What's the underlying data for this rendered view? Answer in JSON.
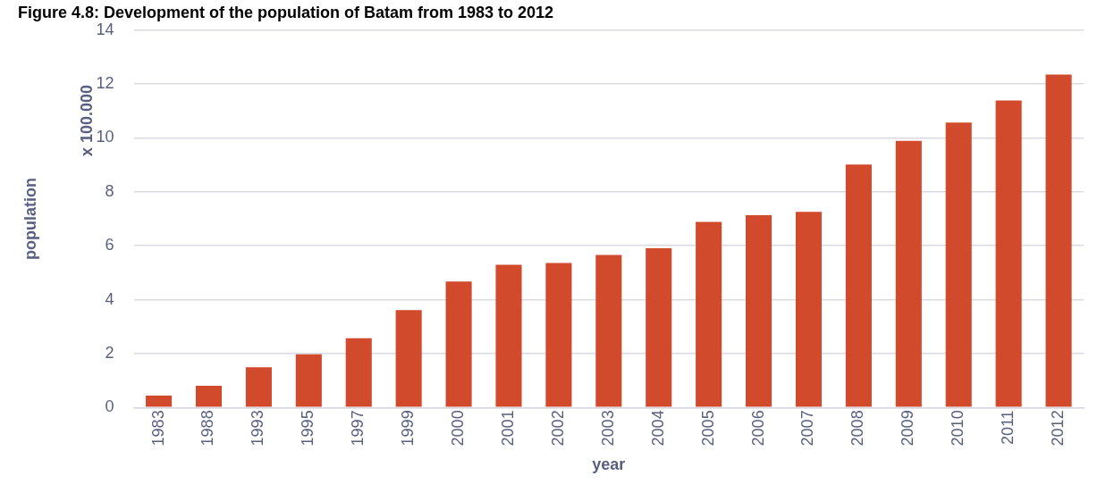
{
  "chart_data": {
    "type": "bar",
    "title": "Figure 4.8: Development of the population of Batam from 1983 to 2012",
    "xlabel": "year",
    "ylabel": "population",
    "annotations": [
      "x 100.000"
    ],
    "categories": [
      "1983",
      "1988",
      "1993",
      "1995",
      "1997",
      "1999",
      "2000",
      "2001",
      "2002",
      "2003",
      "2004",
      "2005",
      "2006",
      "2007",
      "2008",
      "2009",
      "2010",
      "2011",
      "2012"
    ],
    "values": [
      0.44,
      0.81,
      1.49,
      1.97,
      2.57,
      3.61,
      4.67,
      5.29,
      5.36,
      5.66,
      5.91,
      6.88,
      7.13,
      7.26,
      9.01,
      9.89,
      10.57,
      11.39,
      12.35
    ],
    "color": "#d14a2c",
    "ylim": [
      0,
      14
    ],
    "yticks": [
      0,
      2,
      4,
      6,
      8,
      10,
      12,
      14
    ],
    "grid": "y"
  }
}
